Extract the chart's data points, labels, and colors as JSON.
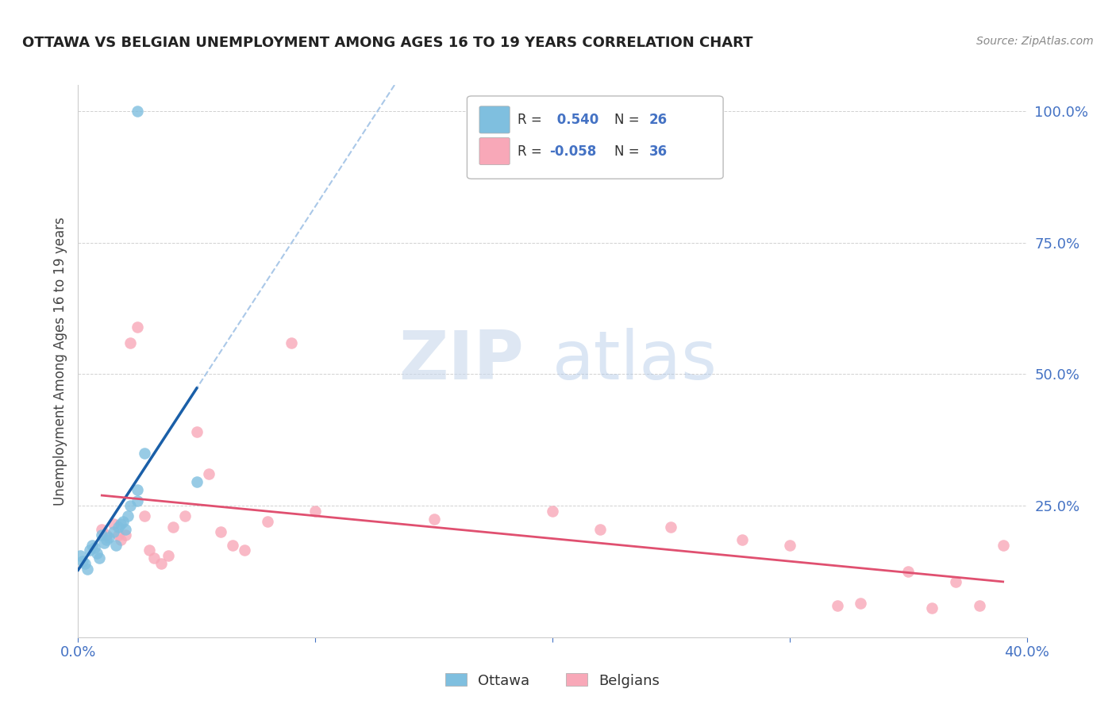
{
  "title": "OTTAWA VS BELGIAN UNEMPLOYMENT AMONG AGES 16 TO 19 YEARS CORRELATION CHART",
  "source": "Source: ZipAtlas.com",
  "ylabel": "Unemployment Among Ages 16 to 19 years",
  "xlim": [
    0.0,
    0.4
  ],
  "ylim": [
    0.0,
    1.05
  ],
  "xticks": [
    0.0,
    0.1,
    0.2,
    0.3,
    0.4
  ],
  "xtick_labels": [
    "0.0%",
    "",
    "",
    "",
    "40.0%"
  ],
  "yticks": [
    0.25,
    0.5,
    0.75,
    1.0
  ],
  "ytick_labels": [
    "25.0%",
    "50.0%",
    "75.0%",
    "100.0%"
  ],
  "ottawa_R": 0.54,
  "ottawa_N": 26,
  "belgian_R": -0.058,
  "belgian_N": 36,
  "ottawa_color": "#7fbfdf",
  "belgian_color": "#f8a8b8",
  "ottawa_line_color": "#1a5fa8",
  "belgian_line_color": "#e05070",
  "ottawa_x": [
    0.001,
    0.002,
    0.003,
    0.004,
    0.005,
    0.006,
    0.007,
    0.008,
    0.009,
    0.01,
    0.011,
    0.012,
    0.013,
    0.015,
    0.016,
    0.017,
    0.018,
    0.019,
    0.02,
    0.021,
    0.022,
    0.025,
    0.025,
    0.028,
    0.05,
    0.025
  ],
  "ottawa_y": [
    0.155,
    0.145,
    0.14,
    0.13,
    0.165,
    0.175,
    0.17,
    0.16,
    0.15,
    0.195,
    0.18,
    0.185,
    0.19,
    0.2,
    0.175,
    0.21,
    0.215,
    0.22,
    0.205,
    0.23,
    0.25,
    0.26,
    0.28,
    0.35,
    0.295,
    1.0
  ],
  "belgian_x": [
    0.01,
    0.012,
    0.015,
    0.017,
    0.018,
    0.02,
    0.022,
    0.025,
    0.028,
    0.03,
    0.032,
    0.035,
    0.038,
    0.04,
    0.045,
    0.05,
    0.055,
    0.06,
    0.065,
    0.07,
    0.08,
    0.09,
    0.1,
    0.15,
    0.2,
    0.22,
    0.25,
    0.28,
    0.3,
    0.32,
    0.33,
    0.35,
    0.36,
    0.37,
    0.38,
    0.39
  ],
  "belgian_y": [
    0.205,
    0.195,
    0.215,
    0.195,
    0.185,
    0.195,
    0.56,
    0.59,
    0.23,
    0.165,
    0.15,
    0.14,
    0.155,
    0.21,
    0.23,
    0.39,
    0.31,
    0.2,
    0.175,
    0.165,
    0.22,
    0.56,
    0.24,
    0.225,
    0.24,
    0.205,
    0.21,
    0.185,
    0.175,
    0.06,
    0.065,
    0.125,
    0.055,
    0.105,
    0.06,
    0.175
  ],
  "watermark_zip": "ZIP",
  "watermark_atlas": "atlas",
  "background_color": "#ffffff",
  "grid_color": "#cccccc"
}
